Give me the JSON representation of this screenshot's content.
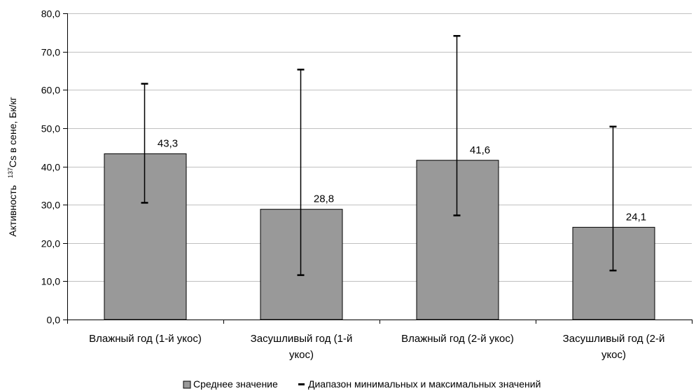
{
  "chart_data": {
    "type": "bar",
    "categories": [
      [
        "Влажный год (1-й укос)"
      ],
      [
        "Засушливый год (1-й",
        "укос)"
      ],
      [
        "Влажный год (2-й укос)"
      ],
      [
        "Засушливый год (2-й",
        "укос)"
      ]
    ],
    "series": [
      {
        "name": "Среднее значение",
        "values": [
          43.3,
          28.8,
          41.6,
          24.1
        ],
        "data_labels": [
          "43,3",
          "28,8",
          "41,6",
          "24,1"
        ]
      }
    ],
    "ranges": {
      "name": "Диапазон минимальных и максимальных значений",
      "min": [
        30.5,
        11.6,
        27.2,
        12.8
      ],
      "max": [
        61.6,
        65.3,
        74.1,
        50.4
      ]
    },
    "ylabel": {
      "prefix": "Активность",
      "superscript": "137",
      "main": "Cs в сене, Бк/кг"
    },
    "ylim": [
      0,
      80
    ],
    "yticks": [
      "0,0",
      "10,0",
      "20,0",
      "30,0",
      "40,0",
      "50,0",
      "60,0",
      "70,0",
      "80,0"
    ],
    "grid": true,
    "legend_position": "bottom",
    "colors": {
      "bar": "#999999",
      "bar_edge": "#000000",
      "grid": "#c0c0c0",
      "range": "#000000"
    }
  }
}
